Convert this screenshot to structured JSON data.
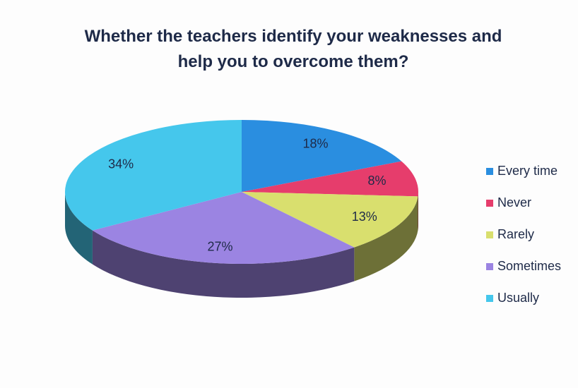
{
  "chart_data": {
    "type": "pie3d",
    "title": "Whether the teachers identify your weaknesses and help you to overcome them?",
    "categories": [
      "Every time",
      "Never",
      "Rarely",
      "Sometimes",
      "Usually"
    ],
    "values": [
      18,
      8,
      13,
      27,
      34
    ],
    "value_labels": [
      "18%",
      "8%",
      "13%",
      "27%",
      "34%"
    ],
    "colors": [
      "#2a8ee0",
      "#e63d6c",
      "#d9df6e",
      "#9b84e2",
      "#45c7ec"
    ],
    "legend": "right"
  }
}
